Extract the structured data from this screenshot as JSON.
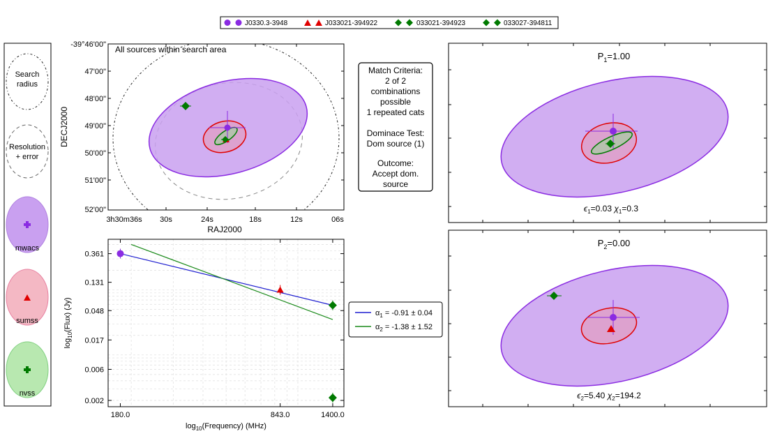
{
  "legend_top": [
    {
      "label": "J0330.3-3948",
      "marker": "circle",
      "color": "#8a2be2"
    },
    {
      "label": "J033021-394922",
      "marker": "triangle",
      "color": "#e00000"
    },
    {
      "label": "033021-394923",
      "marker": "diamond",
      "color": "#007a00"
    },
    {
      "label": "033027-394811",
      "marker": "diamond",
      "color": "#007a00"
    }
  ],
  "key_panel": {
    "search_label": [
      "Search",
      "radius"
    ],
    "resolution_label": [
      "Resolution",
      "+ error"
    ],
    "catalogs": [
      {
        "name": "mwacs",
        "fill": "#c9a0f0",
        "edge": "#8a2be2",
        "marker": "plus"
      },
      {
        "name": "sumss",
        "fill": "#f4b8c4",
        "edge": "#e06080",
        "marker": "triangle"
      },
      {
        "name": "nvss",
        "fill": "#b8e8b0",
        "edge": "#60c060",
        "marker": "plus"
      }
    ]
  },
  "sky_plot": {
    "annotation": "All sources within search area",
    "xlabel": "RAJ2000",
    "ylabel": "DECJ2000",
    "xticks": [
      "3h30m36s",
      "30s",
      "24s",
      "18s",
      "12s",
      "06s"
    ],
    "yticks": [
      "-39°46'00\"",
      "47'00\"",
      "48'00\"",
      "49'00\"",
      "50'00\"",
      "51'00\"",
      "52'00\""
    ]
  },
  "criteria": {
    "lines": [
      "Match Criteria:",
      "2 of 2",
      "combinations",
      "possible",
      "1 repeated cats",
      "",
      "Dominace Test:",
      "Dom source (1)",
      "",
      "Outcome:",
      "Accept dom.",
      "source"
    ]
  },
  "combo1": {
    "title_base": "P",
    "title_sub": "1",
    "title_value": "=1.00",
    "stat_eps_sub": "1",
    "stat_eps_value": "=0.03",
    "stat_chi_sub": "1",
    "stat_chi_value": "=0.3"
  },
  "combo2": {
    "title_base": "P",
    "title_sub": "2",
    "title_value": "=0.00",
    "stat_eps_sub": "2",
    "stat_eps_value": "=5.40",
    "stat_chi_sub": "2",
    "stat_chi_value": "=194.2"
  },
  "sed_legend": [
    {
      "alpha": "α",
      "sub": "1",
      "text": " = -0.91 ± 0.04",
      "color": "#1f1fd0"
    },
    {
      "alpha": "α",
      "sub": "2",
      "text": " = -1.38 ± 1.52",
      "color": "#1a8a1a"
    }
  ],
  "chart_data": {
    "type": "scatter",
    "title": "",
    "xlabel_parts": [
      "log",
      "10",
      "(Frequency) (MHz)"
    ],
    "ylabel_parts": [
      "log",
      "10",
      "(Flux) (Jy)"
    ],
    "x_scale": "log",
    "y_scale": "log",
    "xlim": [
      160,
      1560
    ],
    "ylim": [
      0.0016,
      0.6
    ],
    "xtick_values": [
      180,
      843,
      1400
    ],
    "xtick_labels": [
      "180.0",
      "843.0",
      "1400.0"
    ],
    "ytick_values": [
      0.361,
      0.131,
      0.048,
      0.017,
      0.006,
      0.002
    ],
    "ytick_labels": [
      "0.361",
      "0.131",
      "0.048",
      "0.017",
      "0.006",
      "0.002"
    ],
    "grid": true,
    "points": [
      {
        "catalog": "mwacs",
        "x": 180,
        "y": 0.361,
        "marker": "circle",
        "color": "#8a2be2"
      },
      {
        "catalog": "sumss",
        "x": 843,
        "y": 0.1,
        "marker": "triangle",
        "color": "#e00000"
      },
      {
        "catalog": "nvss",
        "x": 1400,
        "y": 0.058,
        "marker": "diamond",
        "color": "#007a00"
      },
      {
        "catalog": "nvss",
        "x": 1400,
        "y": 0.0022,
        "marker": "diamond",
        "color": "#007a00"
      }
    ],
    "fit_lines": [
      {
        "name": "alpha1",
        "color": "#1f1fd0",
        "x": [
          180,
          1400
        ],
        "y": [
          0.361,
          0.058
        ]
      },
      {
        "name": "alpha2",
        "color": "#1a8a1a",
        "x": [
          200,
          1400
        ],
        "y": [
          0.5,
          0.035
        ]
      }
    ]
  }
}
